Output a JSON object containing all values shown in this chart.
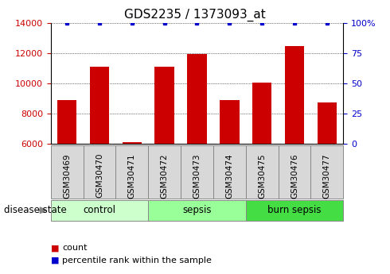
{
  "title": "GDS2235 / 1373093_at",
  "samples": [
    "GSM30469",
    "GSM30470",
    "GSM30471",
    "GSM30472",
    "GSM30473",
    "GSM30474",
    "GSM30475",
    "GSM30476",
    "GSM30477"
  ],
  "counts": [
    8900,
    11100,
    6100,
    11100,
    11950,
    8900,
    10050,
    12500,
    8750
  ],
  "percentiles": [
    100,
    100,
    100,
    100,
    100,
    100,
    100,
    100,
    100
  ],
  "ylim_left": [
    6000,
    14000
  ],
  "ylim_right": [
    0,
    100
  ],
  "yticks_left": [
    6000,
    8000,
    10000,
    12000,
    14000
  ],
  "yticks_right": [
    0,
    25,
    50,
    75,
    100
  ],
  "bar_color": "#cc0000",
  "dot_color": "#0000cc",
  "groups": [
    {
      "label": "control",
      "indices": [
        0,
        1,
        2
      ],
      "color": "#ccffcc"
    },
    {
      "label": "sepsis",
      "indices": [
        3,
        4,
        5
      ],
      "color": "#99ff99"
    },
    {
      "label": "burn sepsis",
      "indices": [
        6,
        7,
        8
      ],
      "color": "#44dd44"
    }
  ],
  "sample_box_color": "#d8d8d8",
  "disease_state_label": "disease state",
  "legend_count_label": "count",
  "legend_pct_label": "percentile rank within the sample",
  "title_fontsize": 11,
  "tick_fontsize": 8,
  "bar_width": 0.6,
  "left_tick_color": "#cc0000",
  "right_tick_color": "#0000cc",
  "grid_color": "#000000",
  "sample_label_fontsize": 7.5,
  "group_label_fontsize": 8.5,
  "legend_fontsize": 8
}
